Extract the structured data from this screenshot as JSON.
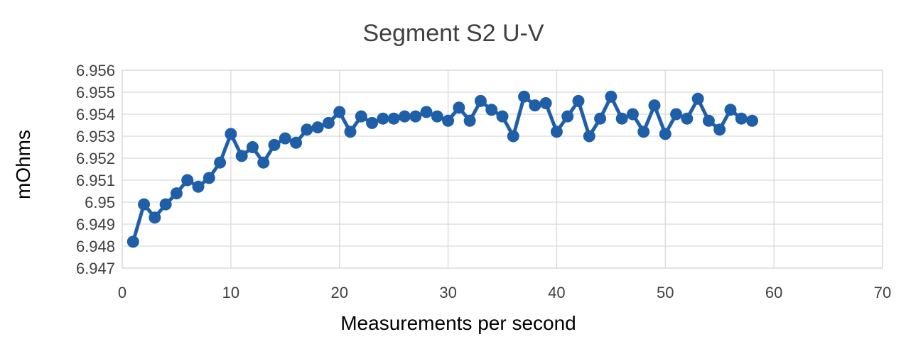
{
  "chart_data": {
    "type": "line",
    "title": "Segment S2 U-V",
    "xlabel": "Measurements per second",
    "ylabel": "mOhms",
    "xlim": [
      0,
      70
    ],
    "ylim": [
      6.947,
      6.956
    ],
    "x_ticks": [
      "0",
      "10",
      "20",
      "30",
      "40",
      "50",
      "60",
      "70"
    ],
    "y_ticks": [
      "6.956",
      "6.955",
      "6.954",
      "6.953",
      "6.952",
      "6.951",
      "6.95",
      "6.949",
      "6.948",
      "6.947"
    ],
    "grid": true,
    "legend": "none",
    "series": [
      {
        "color": "#1f5fa8",
        "marker": "circle",
        "x": [
          1,
          2,
          3,
          4,
          5,
          6,
          7,
          8,
          9,
          10,
          11,
          12,
          13,
          14,
          15,
          16,
          17,
          18,
          19,
          20,
          21,
          22,
          23,
          24,
          25,
          26,
          27,
          28,
          29,
          30,
          31,
          32,
          33,
          34,
          35,
          36,
          37,
          38,
          39,
          40,
          41,
          42,
          43,
          44,
          45,
          46,
          47,
          48,
          49,
          50,
          51,
          52,
          53,
          54,
          55,
          56,
          57,
          58
        ],
        "values": [
          6.9482,
          6.9499,
          6.9493,
          6.9499,
          6.9504,
          6.951,
          6.9507,
          6.9511,
          6.9518,
          6.9531,
          6.9521,
          6.9525,
          6.9518,
          6.9526,
          6.9529,
          6.9527,
          6.9533,
          6.9534,
          6.9536,
          6.9541,
          6.9532,
          6.9539,
          6.9536,
          6.9538,
          6.9538,
          6.9539,
          6.9539,
          6.9541,
          6.9539,
          6.9537,
          6.9543,
          6.9537,
          6.9546,
          6.9542,
          6.9539,
          6.953,
          6.9548,
          6.9544,
          6.9545,
          6.9532,
          6.9539,
          6.9546,
          6.953,
          6.9538,
          6.9548,
          6.9538,
          6.954,
          6.9532,
          6.9544,
          6.9531,
          6.954,
          6.9538,
          6.9547,
          6.9537,
          6.9533,
          6.9542,
          6.9538,
          6.9537
        ]
      }
    ]
  }
}
